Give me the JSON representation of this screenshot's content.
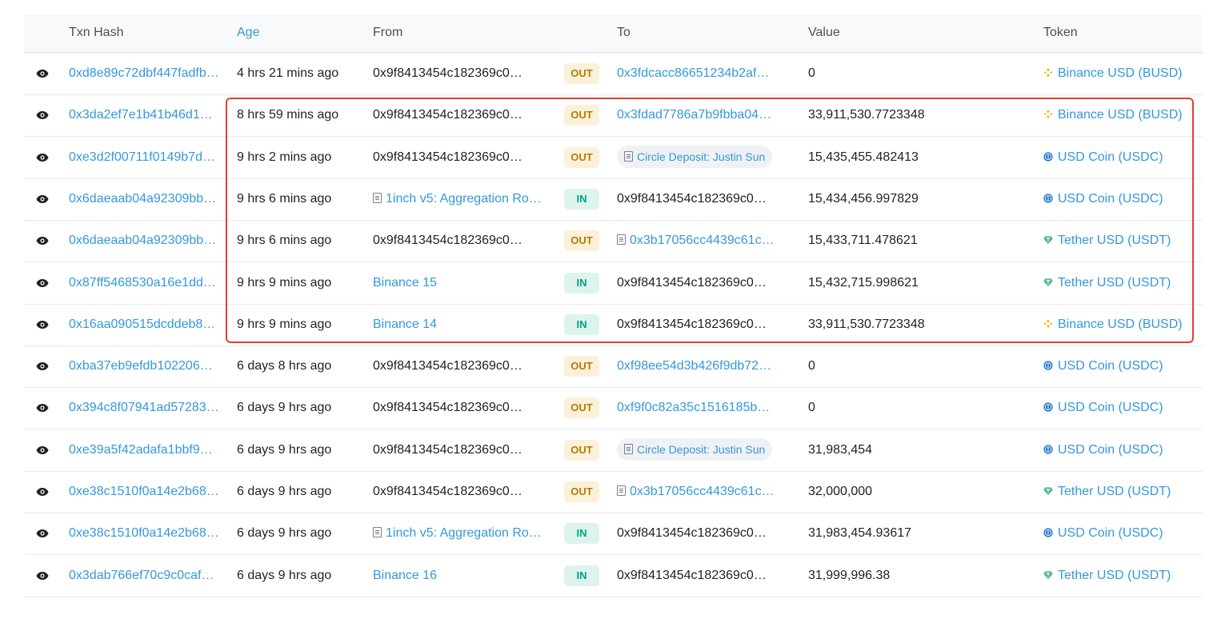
{
  "headers": {
    "txn_hash": "Txn Hash",
    "age": "Age",
    "from": "From",
    "to": "To",
    "value": "Value",
    "token": "Token"
  },
  "colors": {
    "link": "#3498db",
    "out_bg": "#fbf0da",
    "out_text": "#b47d00",
    "in_bg": "#ddf3ee",
    "in_text": "#00a186",
    "highlight": "#e3402f"
  },
  "rows": [
    {
      "hash": "0xd8e89c72dbf447fadfb…",
      "age": "4 hrs 21 mins ago",
      "from": "0x9f8413454c182369c0…",
      "from_type": "plain",
      "dir": "OUT",
      "to": "0x3fdcacc86651234b2af…",
      "to_type": "link",
      "value": "0",
      "token": "Binance USD (BUSD)",
      "token_icon": "busd-icon"
    },
    {
      "hash": "0x3da2ef7e1b41b46d18…",
      "age": "8 hrs 59 mins ago",
      "from": "0x9f8413454c182369c0…",
      "from_type": "plain",
      "dir": "OUT",
      "to": "0x3fdad7786a7b9fbba04…",
      "to_type": "link",
      "value": "33,911,530.7723348",
      "token": "Binance USD (BUSD)",
      "token_icon": "busd-icon"
    },
    {
      "hash": "0xe3d2f00711f0149b7dc…",
      "age": "9 hrs 2 mins ago",
      "from": "0x9f8413454c182369c0…",
      "from_type": "plain",
      "dir": "OUT",
      "to": "Circle Deposit: Justin Sun",
      "to_type": "pill",
      "value": "15,435,455.482413",
      "token": "USD Coin (USDC)",
      "token_icon": "usdc-icon"
    },
    {
      "hash": "0x6daeaab04a92309bba…",
      "age": "9 hrs 6 mins ago",
      "from": "1inch v5: Aggregation Ro…",
      "from_type": "contract",
      "dir": "IN",
      "to": "0x9f8413454c182369c0…",
      "to_type": "plain",
      "value": "15,434,456.997829",
      "token": "USD Coin (USDC)",
      "token_icon": "usdc-icon"
    },
    {
      "hash": "0x6daeaab04a92309bba…",
      "age": "9 hrs 6 mins ago",
      "from": "0x9f8413454c182369c0…",
      "from_type": "plain",
      "dir": "OUT",
      "to": "0x3b17056cc4439c61ce…",
      "to_type": "contract",
      "value": "15,433,711.478621",
      "token": "Tether USD (USDT)",
      "token_icon": "usdt-icon"
    },
    {
      "hash": "0x87ff5468530a16e1dd5…",
      "age": "9 hrs 9 mins ago",
      "from": "Binance 15",
      "from_type": "link",
      "dir": "IN",
      "to": "0x9f8413454c182369c0…",
      "to_type": "plain",
      "value": "15,432,715.998621",
      "token": "Tether USD (USDT)",
      "token_icon": "usdt-icon"
    },
    {
      "hash": "0x16aa090515dcddeb81…",
      "age": "9 hrs 9 mins ago",
      "from": "Binance 14",
      "from_type": "link",
      "dir": "IN",
      "to": "0x9f8413454c182369c0…",
      "to_type": "plain",
      "value": "33,911,530.7723348",
      "token": "Binance USD (BUSD)",
      "token_icon": "busd-icon"
    },
    {
      "hash": "0xba37eb9efdb102206e…",
      "age": "6 days 8 hrs ago",
      "from": "0x9f8413454c182369c0…",
      "from_type": "plain",
      "dir": "OUT",
      "to": "0xf98ee54d3b426f9db72…",
      "to_type": "link",
      "value": "0",
      "token": "USD Coin (USDC)",
      "token_icon": "usdc-icon"
    },
    {
      "hash": "0x394c8f07941ad57283…",
      "age": "6 days 9 hrs ago",
      "from": "0x9f8413454c182369c0…",
      "from_type": "plain",
      "dir": "OUT",
      "to": "0xf9f0c82a35c1516185b…",
      "to_type": "link",
      "value": "0",
      "token": "USD Coin (USDC)",
      "token_icon": "usdc-icon"
    },
    {
      "hash": "0xe39a5f42adafa1bbf9b…",
      "age": "6 days 9 hrs ago",
      "from": "0x9f8413454c182369c0…",
      "from_type": "plain",
      "dir": "OUT",
      "to": "Circle Deposit: Justin Sun",
      "to_type": "pill",
      "value": "31,983,454",
      "token": "USD Coin (USDC)",
      "token_icon": "usdc-icon"
    },
    {
      "hash": "0xe38c1510f0a14e2b68…",
      "age": "6 days 9 hrs ago",
      "from": "0x9f8413454c182369c0…",
      "from_type": "plain",
      "dir": "OUT",
      "to": "0x3b17056cc4439c61ce…",
      "to_type": "contract",
      "value": "32,000,000",
      "token": "Tether USD (USDT)",
      "token_icon": "usdt-icon"
    },
    {
      "hash": "0xe38c1510f0a14e2b68…",
      "age": "6 days 9 hrs ago",
      "from": "1inch v5: Aggregation Ro…",
      "from_type": "contract",
      "dir": "IN",
      "to": "0x9f8413454c182369c0…",
      "to_type": "plain",
      "value": "31,983,454.93617",
      "token": "USD Coin (USDC)",
      "token_icon": "usdc-icon"
    },
    {
      "hash": "0x3dab766ef70c9c0caf6f…",
      "age": "6 days 9 hrs ago",
      "from": "Binance 16",
      "from_type": "link",
      "dir": "IN",
      "to": "0x9f8413454c182369c0…",
      "to_type": "plain",
      "value": "31,999,996.38",
      "token": "Tether USD (USDT)",
      "token_icon": "usdt-icon"
    }
  ]
}
